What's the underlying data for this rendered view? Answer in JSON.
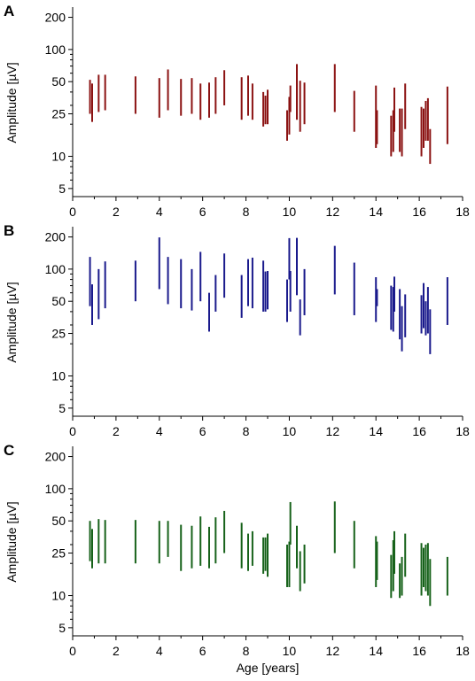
{
  "figure": {
    "xlabel": "Age [years]"
  },
  "chart_data": [
    {
      "type": "range",
      "panel_label": "A",
      "ylabel": "Amplitude [µV]",
      "yscale": "log",
      "xlim": [
        0,
        18
      ],
      "ylim": [
        4.2,
        240
      ],
      "xticks": [
        "0",
        "2",
        "4",
        "6",
        "8",
        "10",
        "12",
        "14",
        "16",
        "18"
      ],
      "yticks": [
        "5",
        "10",
        "25",
        "50",
        "100",
        "200"
      ],
      "color": "#8b1212",
      "ranges": [
        {
          "x": 0.8,
          "low": 25,
          "high": 52
        },
        {
          "x": 0.9,
          "low": 21,
          "high": 48
        },
        {
          "x": 1.2,
          "low": 26,
          "high": 58
        },
        {
          "x": 1.5,
          "low": 27,
          "high": 58
        },
        {
          "x": 2.9,
          "low": 25,
          "high": 56
        },
        {
          "x": 4.0,
          "low": 23,
          "high": 54
        },
        {
          "x": 4.4,
          "low": 27,
          "high": 65
        },
        {
          "x": 5.0,
          "low": 24,
          "high": 53
        },
        {
          "x": 5.5,
          "low": 25,
          "high": 54
        },
        {
          "x": 5.9,
          "low": 22,
          "high": 48
        },
        {
          "x": 6.3,
          "low": 23,
          "high": 49
        },
        {
          "x": 6.6,
          "low": 25,
          "high": 55
        },
        {
          "x": 7.0,
          "low": 30,
          "high": 64
        },
        {
          "x": 7.8,
          "low": 22,
          "high": 55
        },
        {
          "x": 8.1,
          "low": 24,
          "high": 57
        },
        {
          "x": 8.3,
          "low": 22,
          "high": 48
        },
        {
          "x": 8.8,
          "low": 19,
          "high": 40
        },
        {
          "x": 8.9,
          "low": 20,
          "high": 37
        },
        {
          "x": 9.0,
          "low": 20,
          "high": 42
        },
        {
          "x": 9.9,
          "low": 14,
          "high": 27
        },
        {
          "x": 10.0,
          "low": 16,
          "high": 36
        },
        {
          "x": 10.05,
          "low": 26,
          "high": 46
        },
        {
          "x": 10.35,
          "low": 22,
          "high": 73
        },
        {
          "x": 10.5,
          "low": 17,
          "high": 51
        },
        {
          "x": 10.7,
          "low": 20,
          "high": 49
        },
        {
          "x": 12.1,
          "low": 26,
          "high": 73
        },
        {
          "x": 13.0,
          "low": 17,
          "high": 41
        },
        {
          "x": 14.0,
          "low": 12,
          "high": 46
        },
        {
          "x": 14.05,
          "low": 13,
          "high": 27
        },
        {
          "x": 14.7,
          "low": 10,
          "high": 24
        },
        {
          "x": 14.8,
          "low": 11,
          "high": 27
        },
        {
          "x": 14.85,
          "low": 17,
          "high": 44
        },
        {
          "x": 15.1,
          "low": 11,
          "high": 28
        },
        {
          "x": 15.2,
          "low": 10,
          "high": 28
        },
        {
          "x": 15.35,
          "low": 18,
          "high": 48
        },
        {
          "x": 16.1,
          "low": 10,
          "high": 29
        },
        {
          "x": 16.2,
          "low": 12,
          "high": 28
        },
        {
          "x": 16.3,
          "low": 14,
          "high": 33
        },
        {
          "x": 16.4,
          "low": 14,
          "high": 35
        },
        {
          "x": 16.5,
          "low": 8.5,
          "high": 18
        },
        {
          "x": 17.3,
          "low": 13,
          "high": 45
        }
      ]
    },
    {
      "type": "range",
      "panel_label": "B",
      "ylabel": "Amplitude [µV]",
      "yscale": "log",
      "xlim": [
        0,
        18
      ],
      "ylim": [
        4.2,
        240
      ],
      "xticks": [
        "0",
        "2",
        "4",
        "6",
        "8",
        "10",
        "12",
        "14",
        "16",
        "18"
      ],
      "yticks": [
        "5",
        "10",
        "25",
        "50",
        "100",
        "200"
      ],
      "color": "#1a1a8c",
      "ranges": [
        {
          "x": 0.8,
          "low": 45,
          "high": 130
        },
        {
          "x": 0.9,
          "low": 30,
          "high": 72
        },
        {
          "x": 1.2,
          "low": 34,
          "high": 100
        },
        {
          "x": 1.5,
          "low": 43,
          "high": 118
        },
        {
          "x": 2.9,
          "low": 50,
          "high": 120
        },
        {
          "x": 4.0,
          "low": 65,
          "high": 198
        },
        {
          "x": 4.4,
          "low": 47,
          "high": 130
        },
        {
          "x": 5.0,
          "low": 43,
          "high": 124
        },
        {
          "x": 5.5,
          "low": 41,
          "high": 100
        },
        {
          "x": 5.9,
          "low": 50,
          "high": 145
        },
        {
          "x": 6.3,
          "low": 26,
          "high": 60
        },
        {
          "x": 6.6,
          "low": 40,
          "high": 88
        },
        {
          "x": 7.0,
          "low": 54,
          "high": 140
        },
        {
          "x": 7.8,
          "low": 35,
          "high": 88
        },
        {
          "x": 8.1,
          "low": 45,
          "high": 124
        },
        {
          "x": 8.3,
          "low": 43,
          "high": 128
        },
        {
          "x": 8.8,
          "low": 40,
          "high": 120
        },
        {
          "x": 8.9,
          "low": 40,
          "high": 95
        },
        {
          "x": 9.0,
          "low": 42,
          "high": 96
        },
        {
          "x": 9.9,
          "low": 32,
          "high": 80
        },
        {
          "x": 10.0,
          "low": 80,
          "high": 195
        },
        {
          "x": 10.05,
          "low": 40,
          "high": 96
        },
        {
          "x": 10.35,
          "low": 57,
          "high": 196
        },
        {
          "x": 10.5,
          "low": 24,
          "high": 52
        },
        {
          "x": 10.7,
          "low": 37,
          "high": 100
        },
        {
          "x": 12.1,
          "low": 58,
          "high": 165
        },
        {
          "x": 13.0,
          "low": 37,
          "high": 115
        },
        {
          "x": 14.0,
          "low": 32,
          "high": 84
        },
        {
          "x": 14.05,
          "low": 45,
          "high": 65
        },
        {
          "x": 14.7,
          "low": 27,
          "high": 70
        },
        {
          "x": 14.8,
          "low": 26,
          "high": 68
        },
        {
          "x": 14.85,
          "low": 40,
          "high": 85
        },
        {
          "x": 15.1,
          "low": 22,
          "high": 65
        },
        {
          "x": 15.2,
          "low": 17,
          "high": 45
        },
        {
          "x": 15.35,
          "low": 23,
          "high": 58
        },
        {
          "x": 16.1,
          "low": 25,
          "high": 57
        },
        {
          "x": 16.2,
          "low": 28,
          "high": 74
        },
        {
          "x": 16.3,
          "low": 24,
          "high": 50
        },
        {
          "x": 16.4,
          "low": 25,
          "high": 68
        },
        {
          "x": 16.5,
          "low": 16,
          "high": 42
        },
        {
          "x": 17.3,
          "low": 30,
          "high": 84
        }
      ]
    },
    {
      "type": "range",
      "panel_label": "C",
      "ylabel": "Amplitude [µV]",
      "yscale": "log",
      "xlim": [
        0,
        18
      ],
      "ylim": [
        4.2,
        240
      ],
      "xticks": [
        "0",
        "2",
        "4",
        "6",
        "8",
        "10",
        "12",
        "14",
        "16",
        "18"
      ],
      "yticks": [
        "5",
        "10",
        "25",
        "50",
        "100",
        "200"
      ],
      "color": "#17621a",
      "ranges": [
        {
          "x": 0.8,
          "low": 21,
          "high": 50
        },
        {
          "x": 0.9,
          "low": 18,
          "high": 42
        },
        {
          "x": 1.2,
          "low": 20,
          "high": 52
        },
        {
          "x": 1.5,
          "low": 20,
          "high": 51
        },
        {
          "x": 2.9,
          "low": 20,
          "high": 51
        },
        {
          "x": 4.0,
          "low": 20,
          "high": 50
        },
        {
          "x": 4.4,
          "low": 23,
          "high": 50
        },
        {
          "x": 5.0,
          "low": 17,
          "high": 46
        },
        {
          "x": 5.5,
          "low": 18,
          "high": 45
        },
        {
          "x": 5.9,
          "low": 19,
          "high": 55
        },
        {
          "x": 6.3,
          "low": 18,
          "high": 44
        },
        {
          "x": 6.6,
          "low": 20,
          "high": 54
        },
        {
          "x": 7.0,
          "low": 25,
          "high": 62
        },
        {
          "x": 7.8,
          "low": 18,
          "high": 48
        },
        {
          "x": 8.1,
          "low": 17,
          "high": 38
        },
        {
          "x": 8.3,
          "low": 19,
          "high": 40
        },
        {
          "x": 8.8,
          "low": 16,
          "high": 35
        },
        {
          "x": 8.9,
          "low": 17,
          "high": 35
        },
        {
          "x": 9.0,
          "low": 15,
          "high": 38
        },
        {
          "x": 9.9,
          "low": 12,
          "high": 30
        },
        {
          "x": 10.0,
          "low": 12,
          "high": 32
        },
        {
          "x": 10.05,
          "low": 30,
          "high": 75
        },
        {
          "x": 10.35,
          "low": 18,
          "high": 45
        },
        {
          "x": 10.5,
          "low": 11,
          "high": 26
        },
        {
          "x": 10.7,
          "low": 13,
          "high": 30
        },
        {
          "x": 12.1,
          "low": 25,
          "high": 76
        },
        {
          "x": 13.0,
          "low": 18,
          "high": 50
        },
        {
          "x": 14.0,
          "low": 12,
          "high": 36
        },
        {
          "x": 14.05,
          "low": 14,
          "high": 32
        },
        {
          "x": 14.7,
          "low": 9.5,
          "high": 24
        },
        {
          "x": 14.8,
          "low": 11,
          "high": 33
        },
        {
          "x": 14.85,
          "low": 16,
          "high": 40
        },
        {
          "x": 15.1,
          "low": 9.5,
          "high": 20
        },
        {
          "x": 15.2,
          "low": 10,
          "high": 23
        },
        {
          "x": 15.35,
          "low": 15,
          "high": 38
        },
        {
          "x": 16.1,
          "low": 10,
          "high": 31
        },
        {
          "x": 16.2,
          "low": 12,
          "high": 28
        },
        {
          "x": 16.3,
          "low": 11,
          "high": 30
        },
        {
          "x": 16.4,
          "low": 10,
          "high": 31
        },
        {
          "x": 16.5,
          "low": 8,
          "high": 22
        },
        {
          "x": 17.3,
          "low": 10,
          "high": 23
        }
      ]
    }
  ]
}
